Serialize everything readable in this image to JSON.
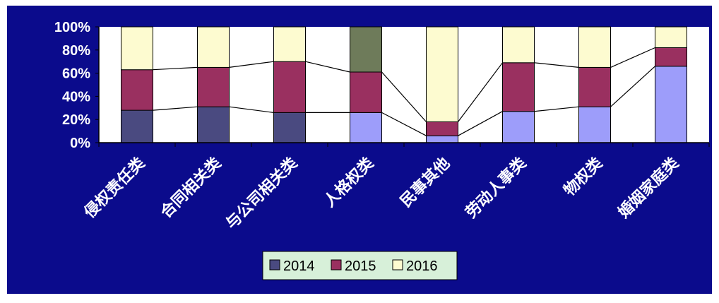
{
  "chart_data": {
    "type": "bar",
    "stacked": true,
    "normalized": true,
    "categories": [
      "侵权责任类",
      "合同相关类",
      "与公司相关类",
      "人格权类",
      "民事其他",
      "劳动人事类",
      "物权类",
      "婚姻家庭类"
    ],
    "series": [
      {
        "name": "2014",
        "values": [
          28,
          31,
          26,
          26,
          6,
          27,
          31,
          66
        ]
      },
      {
        "name": "2015",
        "values": [
          35,
          34,
          44,
          35,
          12,
          42,
          34,
          16
        ]
      },
      {
        "name": "2016",
        "values": [
          37,
          35,
          30,
          39,
          82,
          31,
          35,
          18
        ]
      }
    ],
    "point_overrides": [
      {
        "category": "人格权类",
        "series": "2016",
        "color": "#6e7b5a"
      }
    ],
    "yticks": [
      "0%",
      "20%",
      "40%",
      "60%",
      "80%",
      "100%"
    ],
    "ylim": [
      0,
      100
    ],
    "series_lines": true,
    "legend_position": "bottom",
    "grid": false,
    "colors": {
      "background": "#0b0b8c",
      "plot_area": "#ffffff",
      "series_2014": "#4a4a80",
      "series_2014_light": "#9d9dfa",
      "series_2015": "#9a3060",
      "series_2016": "#fdfbd0",
      "legend_bg": "#d7f0d9"
    }
  }
}
